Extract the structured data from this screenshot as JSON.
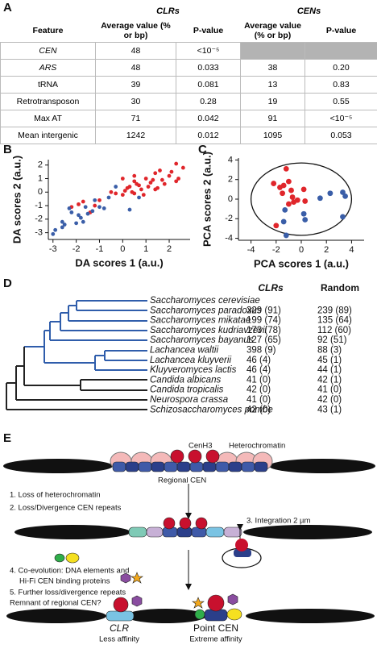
{
  "panel_labels": [
    "A",
    "B",
    "C",
    "D",
    "E"
  ],
  "table": {
    "group_headers": [
      "CLRs",
      "CENs"
    ],
    "headers": [
      "Feature",
      "Average value (% or bp)",
      "P-value",
      "Average value (% or bp)",
      "P-value"
    ],
    "rows": [
      [
        "CEN",
        "48",
        "<10⁻⁵",
        null,
        null
      ],
      [
        "ARS",
        "48",
        "0.033",
        "38",
        "0.20"
      ],
      [
        "tRNA",
        "39",
        "0.081",
        "13",
        "0.83"
      ],
      [
        "Retrotransposon",
        "30",
        "0.28",
        "19",
        "0.55"
      ],
      [
        "Max AT",
        "71",
        "0.042",
        "91",
        "<10⁻⁵"
      ],
      [
        "Mean intergenic",
        "1242",
        "0.012",
        "1095",
        "0.053"
      ]
    ]
  },
  "chart_data": [
    {
      "type": "scatter",
      "xlabel": "DA scores 1 (a.u.)",
      "ylabel": "DA scores 2 (a.u.)",
      "xlim": [
        -3.2,
        2.9
      ],
      "ylim": [
        -3.5,
        2.4
      ],
      "xticks": [
        -3,
        -2,
        -1,
        0,
        1,
        2
      ],
      "yticks": [
        -3,
        -2,
        -1,
        0,
        1,
        2
      ],
      "series": [
        {
          "color": "#e0262b",
          "x": [
            -2.2,
            -1.9,
            -1.7,
            -1.4,
            -1.2,
            -1.0,
            -0.5,
            -0.3,
            0,
            0.1,
            0.2,
            0.3,
            0.4,
            0.5,
            0.5,
            0.6,
            0.7,
            0.8,
            0.9,
            1.0,
            1.1,
            1.2,
            1.3,
            1.4,
            1.4,
            1.5,
            1.6,
            1.7,
            1.8,
            2.0,
            2.1,
            2.3,
            2.3,
            2.4,
            2.6,
            0.0,
            0.5
          ],
          "values": [
            -1.1,
            -0.9,
            -0.7,
            -1.5,
            -1.0,
            -0.6,
            0.0,
            -0.1,
            -0.2,
            0.1,
            0.3,
            0.4,
            0.0,
            -0.1,
            0.8,
            0.6,
            0.5,
            0.2,
            -0.2,
            1.0,
            0.4,
            0.7,
            0.9,
            1.4,
            0.2,
            0.3,
            1.6,
            0.9,
            0.6,
            1.2,
            1.5,
            0.8,
            2.1,
            1.0,
            1.8,
            1.0,
            1.2
          ]
        },
        {
          "color": "#3a5ea8",
          "x": [
            -3.0,
            -2.9,
            -2.6,
            -2.5,
            -2.3,
            -2.2,
            -2.0,
            -1.9,
            -1.8,
            -1.6,
            -1.5,
            -1.3,
            -1.2,
            -1.0,
            -0.8,
            -0.6,
            -0.3,
            0.3,
            0.7,
            -2.6,
            -1.7
          ],
          "values": [
            -3.1,
            -2.8,
            -2.2,
            -2.4,
            -1.2,
            -1.5,
            -2.3,
            -1.7,
            -1.9,
            -1.1,
            -1.6,
            -1.4,
            -0.6,
            -1.1,
            -1.2,
            -0.4,
            0.4,
            -1.3,
            -0.4,
            -2.6,
            -2.2
          ]
        }
      ]
    },
    {
      "type": "scatter",
      "xlabel": "PCA scores 1 (a.u.)",
      "ylabel": "PCA scores 2 (a.u.)",
      "xlim": [
        -5,
        5
      ],
      "ylim": [
        -4.2,
        4.2
      ],
      "xticks": [
        -4,
        -2,
        0,
        2,
        4
      ],
      "yticks": [
        -4,
        -2,
        0,
        2,
        4
      ],
      "series": [
        {
          "color": "#e0262b",
          "x": [
            -1.2,
            -2.2,
            -1.7,
            -1.4,
            -1.0,
            -0.8,
            -1.5,
            -0.7,
            -0.3,
            -1.0,
            -0.6,
            -2.0,
            0.2,
            0.3
          ],
          "values": [
            3.1,
            1.6,
            1.2,
            1.4,
            1.8,
            0.9,
            0.6,
            0.2,
            -0.1,
            -0.5,
            -0.3,
            -2.7,
            1.0,
            -0.2
          ]
        },
        {
          "color": "#3a5ea8",
          "x": [
            -1.3,
            -1.4,
            -1.2,
            0.2,
            0.3,
            1.5,
            2.3,
            3.3,
            3.5,
            3.3
          ],
          "values": [
            -1.1,
            -2.3,
            -3.7,
            -1.5,
            -2.1,
            0.1,
            0.6,
            0.7,
            0.3,
            -1.8
          ]
        }
      ]
    }
  ],
  "tree": {
    "headers": [
      "CLRs",
      "Random"
    ],
    "species": [
      "Saccharomyces cerevisiae",
      "Saccharomyces paradoxus",
      "Saccharomyces mikatae",
      "Saccharomyces kudriavzevii",
      "Saccharomyces bayanus",
      "Lachancea waltii",
      "Lachancea kluyverii",
      "Kluyveromyces lactis",
      "Candida albicans",
      "Candida tropicalis",
      "Neurospora crassa",
      "Schizosaccharomyces pombe"
    ],
    "clrs": [
      null,
      "329 (91)",
      "199 (74)",
      "173 (78)",
      "127 (65)",
      "398 (9)",
      "46 (4)",
      "46 (4)",
      "41 (0)",
      "42 (0)",
      "41 (0)",
      "42 (0)"
    ],
    "random": [
      null,
      "239 (89)",
      "135 (64)",
      "112 (60)",
      "92 (51)",
      "88 (3)",
      "45 (1)",
      "44 (1)",
      "42 (1)",
      "41 (0)",
      "42 (0)",
      "43 (1)"
    ]
  },
  "diagram": {
    "cenh3": "CenH3",
    "heterochromatin": "Heterochromatin",
    "regional_cen": "Regional CEN",
    "step1": "1. Loss of heterochromatin",
    "step2": "2. Loss/Divergence CEN repeats",
    "step3": "3. Integration 2 µm",
    "step4a": "4. Co-evolution: DNA elements and",
    "step4b": "Hi-Fi CEN binding proteins",
    "step5": "5. Further loss/divergence repeats",
    "remnant": "Remnant of regional CEN?",
    "clr": "CLR",
    "clr_note": "Less affinity",
    "point_cen": "Point CEN",
    "point_note": "Extreme affinity"
  }
}
